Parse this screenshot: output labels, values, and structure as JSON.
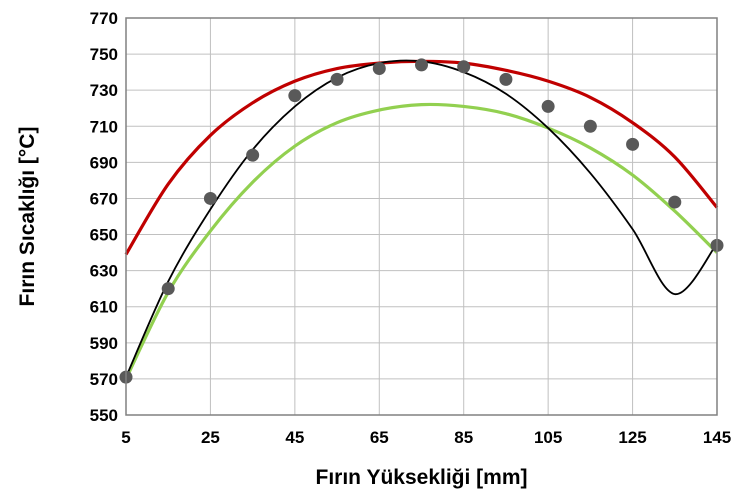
{
  "chart_data": {
    "type": "line",
    "xlabel": "Fırın Yüksekliği [mm]",
    "ylabel": "Fırın Sıcaklığı [°C]",
    "xlim": [
      5,
      145
    ],
    "ylim": [
      550,
      770
    ],
    "xticks": [
      5,
      25,
      45,
      65,
      85,
      105,
      125,
      145
    ],
    "yticks": [
      550,
      570,
      590,
      610,
      630,
      650,
      670,
      690,
      710,
      730,
      750,
      770
    ],
    "grid": true,
    "legend": "none",
    "series": [
      {
        "kind": "line",
        "color": "#c00000",
        "x": [
          5,
          15,
          25,
          35,
          45,
          55,
          65,
          75,
          85,
          95,
          105,
          115,
          125,
          135,
          145
        ],
        "values": [
          639,
          678,
          705,
          723,
          735,
          742,
          745,
          746,
          745,
          741,
          735,
          726,
          712,
          693,
          665
        ]
      },
      {
        "kind": "line",
        "color": "#92d050",
        "x": [
          5,
          15,
          25,
          35,
          45,
          55,
          65,
          75,
          85,
          95,
          105,
          115,
          125,
          135,
          145
        ],
        "values": [
          570,
          618,
          652,
          679,
          699,
          712,
          719,
          722,
          721,
          717,
          709,
          698,
          683,
          663,
          640
        ]
      },
      {
        "kind": "line",
        "color": "#000000",
        "x": [
          5,
          15,
          25,
          35,
          45,
          55,
          65,
          75,
          85,
          95,
          105,
          115,
          125,
          135,
          145
        ],
        "values": [
          571,
          624,
          664,
          697,
          721,
          737,
          745,
          746,
          740,
          728,
          709,
          684,
          653,
          617,
          645
        ]
      },
      {
        "kind": "scatter",
        "color": "#595959",
        "x": [
          5,
          15,
          25,
          35,
          45,
          55,
          65,
          75,
          85,
          95,
          105,
          115,
          125,
          135,
          145
        ],
        "values": [
          571,
          620,
          670,
          694,
          727,
          736,
          742,
          744,
          743,
          736,
          721,
          710,
          700,
          668,
          644
        ]
      }
    ]
  }
}
